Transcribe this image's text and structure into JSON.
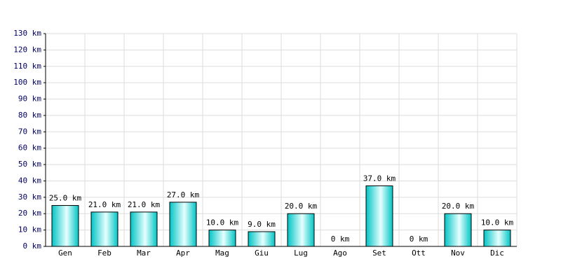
{
  "chart_data": {
    "type": "bar",
    "categories": [
      "Gen",
      "Feb",
      "Mar",
      "Apr",
      "Mag",
      "Giu",
      "Lug",
      "Ago",
      "Set",
      "Ott",
      "Nov",
      "Dic"
    ],
    "values": [
      25,
      21,
      21,
      27,
      10,
      9,
      20,
      0,
      37,
      0,
      20,
      10
    ],
    "value_labels": [
      "25.0 km",
      "21.0 km",
      "21.0 km",
      "27.0 km",
      "10.0 km",
      "9.0 km",
      "20.0 km",
      "0 km",
      "37.0 km",
      "0 km",
      "20.0 km",
      "10.0 km"
    ],
    "color": "#00c4c4",
    "ylim": [
      0,
      130
    ],
    "yticks": [
      {
        "value": 0,
        "label": "0 km"
      },
      {
        "value": 10,
        "label": "10 km"
      },
      {
        "value": 20,
        "label": "20 km"
      },
      {
        "value": 30,
        "label": "30 km"
      },
      {
        "value": 40,
        "label": "40 km"
      },
      {
        "value": 50,
        "label": "50 km"
      },
      {
        "value": 60,
        "label": "60 km"
      },
      {
        "value": 70,
        "label": "70 km"
      },
      {
        "value": 80,
        "label": "80 km"
      },
      {
        "value": 90,
        "label": "90 km"
      },
      {
        "value": 100,
        "label": "100 km"
      },
      {
        "value": 110,
        "label": "110 km"
      },
      {
        "value": 120,
        "label": "120 km"
      },
      {
        "value": 130,
        "label": "130 km"
      }
    ],
    "grid": true
  }
}
